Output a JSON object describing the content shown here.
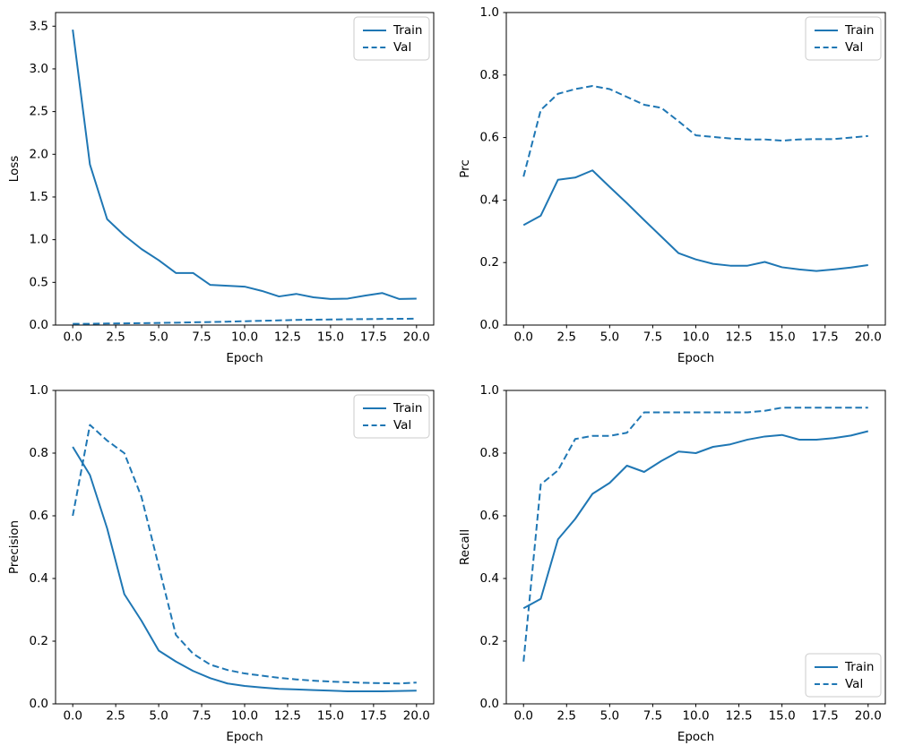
{
  "figure": {
    "background": "#ffffff",
    "accent_color": "#1f77b4",
    "text_color": "#000000",
    "spine_color": "#000000",
    "legend_border_color": "#cbcbcb"
  },
  "chart_data": [
    {
      "id": "loss",
      "type": "line",
      "title": "",
      "xlabel": "Epoch",
      "ylabel": "Loss",
      "x": [
        0,
        1,
        2,
        3,
        4,
        5,
        6,
        7,
        8,
        9,
        10,
        11,
        12,
        13,
        14,
        15,
        16,
        17,
        18,
        19,
        20
      ],
      "series": [
        {
          "name": "Train",
          "style": "solid",
          "values": [
            3.46,
            1.88,
            1.24,
            1.05,
            0.89,
            0.76,
            0.61,
            0.61,
            0.47,
            0.46,
            0.45,
            0.4,
            0.335,
            0.365,
            0.325,
            0.305,
            0.31,
            0.345,
            0.375,
            0.305,
            0.31
          ]
        },
        {
          "name": "Val",
          "style": "dashed",
          "values": [
            0.015,
            0.015,
            0.018,
            0.02,
            0.022,
            0.025,
            0.028,
            0.032,
            0.036,
            0.04,
            0.045,
            0.05,
            0.055,
            0.06,
            0.063,
            0.065,
            0.068,
            0.07,
            0.072,
            0.073,
            0.075
          ]
        }
      ],
      "xlim": [
        -1,
        21
      ],
      "ylim": [
        0,
        3.66
      ],
      "xticks": [
        "0.0",
        "2.5",
        "5.0",
        "7.5",
        "10.0",
        "12.5",
        "15.0",
        "17.5",
        "20.0"
      ],
      "yticks": [
        "0.0",
        "0.5",
        "1.0",
        "1.5",
        "2.0",
        "2.5",
        "3.0",
        "3.5"
      ],
      "legend_position": "upper-right",
      "grid": false
    },
    {
      "id": "prc",
      "type": "line",
      "title": "",
      "xlabel": "Epoch",
      "ylabel": "Prc",
      "x": [
        0,
        1,
        2,
        3,
        4,
        5,
        6,
        7,
        8,
        9,
        10,
        11,
        12,
        13,
        14,
        15,
        16,
        17,
        18,
        19,
        20
      ],
      "series": [
        {
          "name": "Train",
          "style": "solid",
          "values": [
            0.32,
            0.35,
            0.465,
            0.472,
            0.495,
            0.442,
            0.39,
            0.336,
            0.283,
            0.23,
            0.21,
            0.196,
            0.19,
            0.19,
            0.202,
            0.185,
            0.178,
            0.173,
            0.178,
            0.184,
            0.192
          ]
        },
        {
          "name": "Val",
          "style": "dashed",
          "values": [
            0.475,
            0.688,
            0.74,
            0.755,
            0.765,
            0.755,
            0.73,
            0.705,
            0.695,
            0.652,
            0.607,
            0.602,
            0.597,
            0.594,
            0.594,
            0.59,
            0.594,
            0.595,
            0.595,
            0.6,
            0.605
          ]
        }
      ],
      "xlim": [
        -1,
        21
      ],
      "ylim": [
        0,
        1.0
      ],
      "xticks": [
        "0.0",
        "2.5",
        "5.0",
        "7.5",
        "10.0",
        "12.5",
        "15.0",
        "17.5",
        "20.0"
      ],
      "yticks": [
        "0.0",
        "0.2",
        "0.4",
        "0.6",
        "0.8",
        "1.0"
      ],
      "legend_position": "upper-right",
      "grid": false
    },
    {
      "id": "precision",
      "type": "line",
      "title": "",
      "xlabel": "Epoch",
      "ylabel": "Precision",
      "x": [
        0,
        1,
        2,
        3,
        4,
        5,
        6,
        7,
        8,
        9,
        10,
        11,
        12,
        13,
        14,
        15,
        16,
        17,
        18,
        19,
        20
      ],
      "series": [
        {
          "name": "Train",
          "style": "solid",
          "values": [
            0.82,
            0.73,
            0.56,
            0.35,
            0.265,
            0.17,
            0.135,
            0.105,
            0.082,
            0.065,
            0.057,
            0.052,
            0.048,
            0.046,
            0.044,
            0.042,
            0.04,
            0.04,
            0.04,
            0.041,
            0.042
          ]
        },
        {
          "name": "Val",
          "style": "dashed",
          "values": [
            0.6,
            0.89,
            0.84,
            0.8,
            0.66,
            0.44,
            0.22,
            0.16,
            0.125,
            0.108,
            0.097,
            0.09,
            0.083,
            0.078,
            0.074,
            0.071,
            0.069,
            0.067,
            0.066,
            0.065,
            0.068
          ]
        }
      ],
      "xlim": [
        -1,
        21
      ],
      "ylim": [
        0,
        1.0
      ],
      "xticks": [
        "0.0",
        "2.5",
        "5.0",
        "7.5",
        "10.0",
        "12.5",
        "15.0",
        "17.5",
        "20.0"
      ],
      "yticks": [
        "0.0",
        "0.2",
        "0.4",
        "0.6",
        "0.8",
        "1.0"
      ],
      "legend_position": "upper-right",
      "grid": false
    },
    {
      "id": "recall",
      "type": "line",
      "title": "",
      "xlabel": "Epoch",
      "ylabel": "Recall",
      "x": [
        0,
        1,
        2,
        3,
        4,
        5,
        6,
        7,
        8,
        9,
        10,
        11,
        12,
        13,
        14,
        15,
        16,
        17,
        18,
        19,
        20
      ],
      "series": [
        {
          "name": "Train",
          "style": "solid",
          "values": [
            0.305,
            0.335,
            0.525,
            0.59,
            0.67,
            0.705,
            0.76,
            0.74,
            0.775,
            0.805,
            0.8,
            0.82,
            0.828,
            0.843,
            0.853,
            0.858,
            0.843,
            0.843,
            0.848,
            0.856,
            0.87
          ]
        },
        {
          "name": "Val",
          "style": "dashed",
          "values": [
            0.135,
            0.7,
            0.745,
            0.845,
            0.855,
            0.855,
            0.865,
            0.93,
            0.93,
            0.93,
            0.93,
            0.93,
            0.93,
            0.93,
            0.935,
            0.945,
            0.945,
            0.945,
            0.945,
            0.945,
            0.945
          ]
        }
      ],
      "xlim": [
        -1,
        21
      ],
      "ylim": [
        0,
        1.0
      ],
      "xticks": [
        "0.0",
        "2.5",
        "5.0",
        "7.5",
        "10.0",
        "12.5",
        "15.0",
        "17.5",
        "20.0"
      ],
      "yticks": [
        "0.0",
        "0.2",
        "0.4",
        "0.6",
        "0.8",
        "1.0"
      ],
      "legend_position": "lower-right",
      "grid": false
    }
  ]
}
